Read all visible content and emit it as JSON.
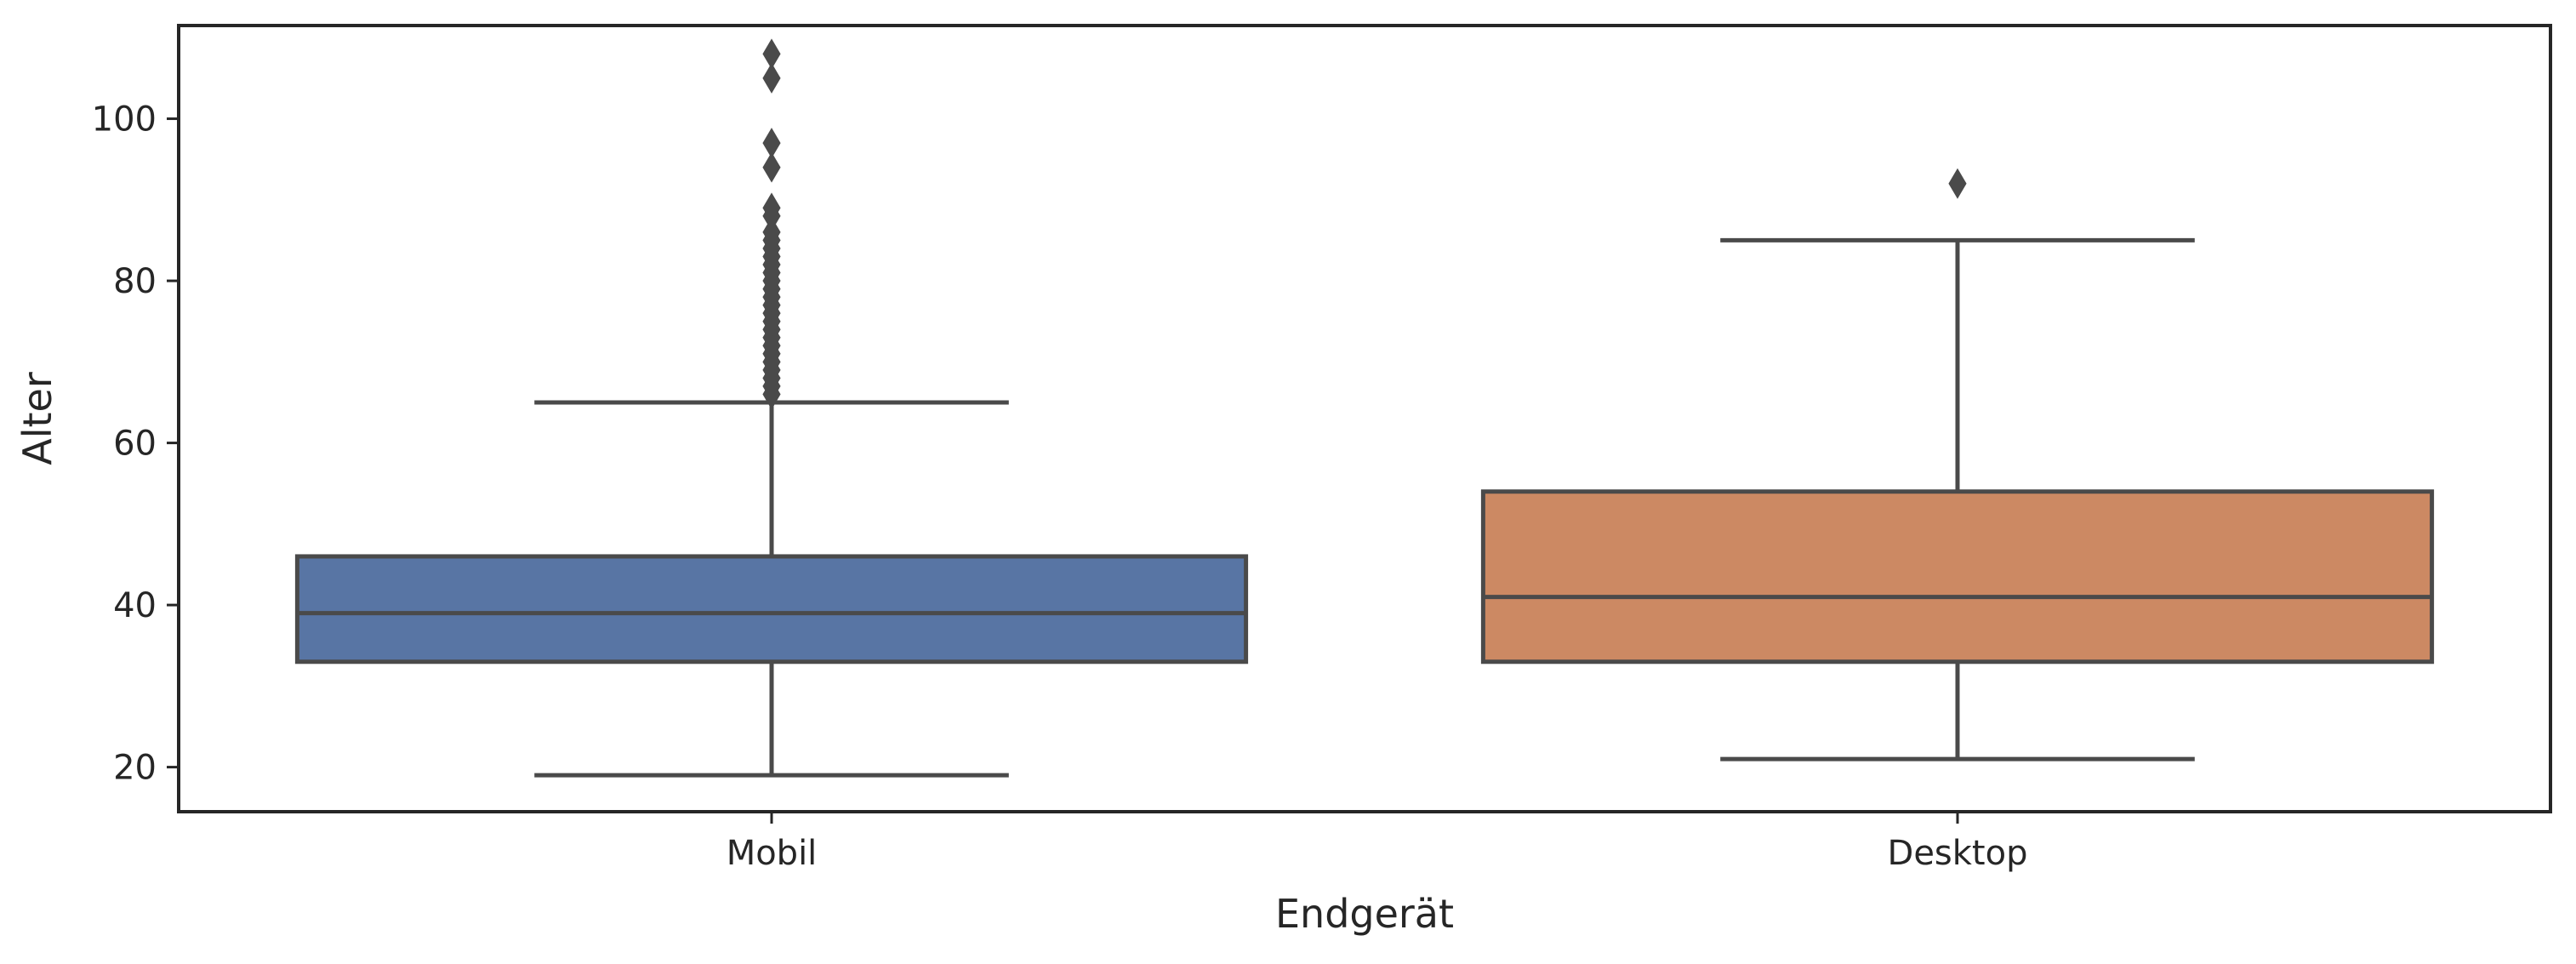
{
  "chart_data": {
    "type": "box",
    "xlabel": "Endgerät",
    "ylabel": "Alter",
    "ylim": [
      14.5,
      111.5
    ],
    "yticks": [
      20,
      40,
      60,
      80,
      100
    ],
    "grid": false,
    "categories": [
      "Mobil",
      "Desktop"
    ],
    "boxes": [
      {
        "category": "Mobil",
        "color": "#5875a4",
        "whisker_low": 19,
        "q1": 33,
        "median": 39,
        "q3": 46,
        "whisker_high": 65,
        "outliers": [
          66,
          67,
          68,
          69,
          70,
          71,
          72,
          73,
          74,
          75,
          76,
          77,
          78,
          79,
          80,
          81,
          82,
          83,
          84,
          85,
          86,
          88,
          89,
          94,
          97,
          105,
          108
        ]
      },
      {
        "category": "Desktop",
        "color": "#cc8963",
        "whisker_low": 21,
        "q1": 33,
        "median": 41,
        "q3": 54,
        "whisker_high": 85,
        "outliers": [
          92
        ]
      }
    ]
  },
  "colors": {
    "line": "#4a4a4a",
    "axes": "#262626"
  }
}
